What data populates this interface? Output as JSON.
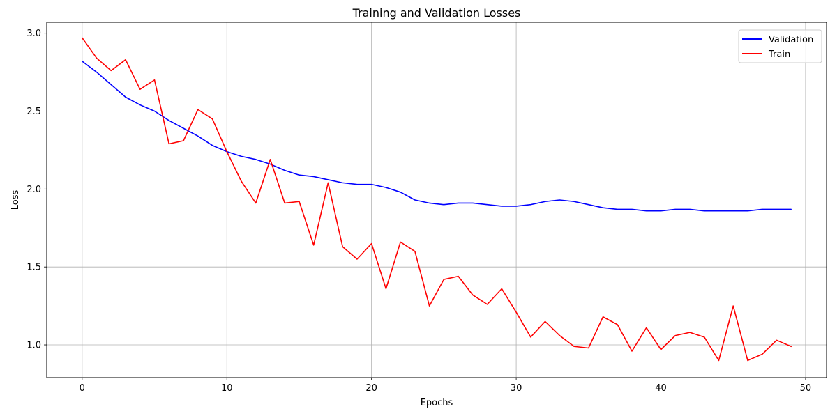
{
  "chart_data": {
    "type": "line",
    "title": "Training and Validation Losses",
    "xlabel": "Epochs",
    "ylabel": "Loss",
    "xlim": [
      -2.45,
      51.45
    ],
    "ylim": [
      0.79,
      3.07
    ],
    "xticks": [
      0,
      10,
      20,
      30,
      40,
      50
    ],
    "yticks": [
      1.0,
      1.5,
      2.0,
      2.5,
      3.0
    ],
    "xtick_labels": [
      "0",
      "10",
      "20",
      "30",
      "40",
      "50"
    ],
    "ytick_labels": [
      "1.0",
      "1.5",
      "2.0",
      "2.5",
      "3.0"
    ],
    "grid": true,
    "legend_position": "top-right",
    "x": [
      0,
      1,
      2,
      3,
      4,
      5,
      6,
      7,
      8,
      9,
      10,
      11,
      12,
      13,
      14,
      15,
      16,
      17,
      18,
      19,
      20,
      21,
      22,
      23,
      24,
      25,
      26,
      27,
      28,
      29,
      30,
      31,
      32,
      33,
      34,
      35,
      36,
      37,
      38,
      39,
      40,
      41,
      42,
      43,
      44,
      45,
      46,
      47,
      48,
      49
    ],
    "series": [
      {
        "name": "Validation",
        "color": "#0000ff",
        "values": [
          2.82,
          2.75,
          2.67,
          2.59,
          2.54,
          2.5,
          2.44,
          2.39,
          2.34,
          2.28,
          2.24,
          2.21,
          2.19,
          2.16,
          2.12,
          2.09,
          2.08,
          2.06,
          2.04,
          2.03,
          2.03,
          2.01,
          1.98,
          1.93,
          1.91,
          1.9,
          1.91,
          1.91,
          1.9,
          1.89,
          1.89,
          1.9,
          1.92,
          1.93,
          1.92,
          1.9,
          1.88,
          1.87,
          1.87,
          1.86,
          1.86,
          1.87,
          1.87,
          1.86,
          1.86,
          1.86,
          1.86,
          1.87,
          1.87,
          1.87
        ]
      },
      {
        "name": "Train",
        "color": "#ff0000",
        "values": [
          2.97,
          2.84,
          2.76,
          2.83,
          2.64,
          2.7,
          2.29,
          2.31,
          2.51,
          2.45,
          2.24,
          2.05,
          1.91,
          2.19,
          1.91,
          1.92,
          1.64,
          2.04,
          1.63,
          1.55,
          1.65,
          1.36,
          1.66,
          1.6,
          1.25,
          1.42,
          1.44,
          1.32,
          1.26,
          1.36,
          1.21,
          1.05,
          1.15,
          1.06,
          0.99,
          0.98,
          1.18,
          1.13,
          0.96,
          1.11,
          0.97,
          1.06,
          1.08,
          1.05,
          0.9,
          1.25,
          0.9,
          0.94,
          1.03,
          0.99
        ]
      }
    ]
  }
}
